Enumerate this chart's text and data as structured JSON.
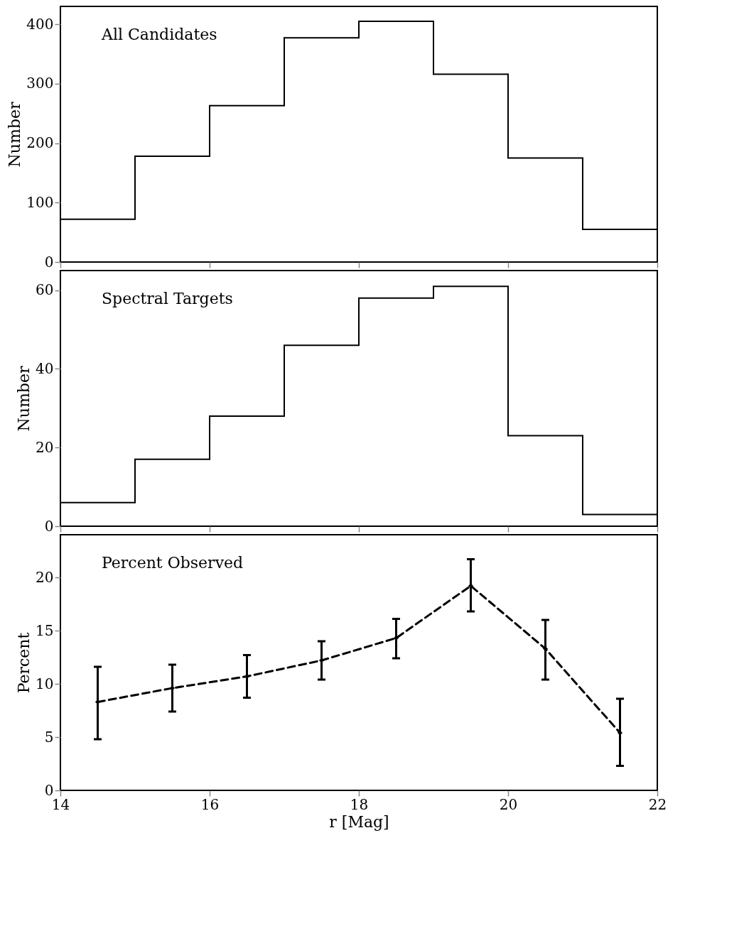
{
  "chart_data": [
    {
      "type": "histogram",
      "bins": [
        14,
        15,
        16,
        17,
        18,
        19,
        20,
        21,
        22
      ],
      "values": [
        72,
        178,
        263,
        377,
        405,
        316,
        175,
        55
      ],
      "color": "#000000",
      "ylabel": "Number",
      "annotations": [
        "All Candidates"
      ],
      "xlim": [
        14,
        22
      ],
      "xticks": [
        14,
        16,
        18,
        20,
        22
      ],
      "ylim": [
        0,
        430
      ],
      "yticks": [
        0,
        100,
        200,
        300,
        400
      ],
      "tick_labels": "y",
      "grid": false
    },
    {
      "type": "histogram",
      "bins": [
        14,
        15,
        16,
        17,
        18,
        19,
        20,
        21,
        22
      ],
      "values": [
        6,
        17,
        28,
        46,
        58,
        61,
        23,
        3
      ],
      "color": "#000000",
      "ylabel": "Number",
      "annotations": [
        "Spectral Targets"
      ],
      "xlim": [
        14,
        22
      ],
      "xticks": [
        14,
        16,
        18,
        20,
        22
      ],
      "ylim": [
        0,
        65
      ],
      "yticks": [
        0,
        20,
        40,
        60
      ],
      "tick_labels": "y",
      "grid": false
    },
    {
      "type": "line",
      "x": [
        14.5,
        15.5,
        16.5,
        17.5,
        18.5,
        19.5,
        20.5,
        21.5
      ],
      "values": [
        8.3,
        9.6,
        10.7,
        12.2,
        14.3,
        19.2,
        13.3,
        5.4
      ],
      "errors": [
        [
          4.8,
          11.6
        ],
        [
          7.4,
          11.8
        ],
        [
          8.7,
          12.7
        ],
        [
          10.4,
          14.0
        ],
        [
          12.4,
          16.1
        ],
        [
          16.8,
          21.7
        ],
        [
          10.4,
          16.0
        ],
        [
          2.3,
          8.6
        ]
      ],
      "color": "#000000",
      "line_style": "dashed",
      "marker": "diamond",
      "xlabel": "r [Mag]",
      "ylabel": "Percent",
      "annotations": [
        "Percent Observed"
      ],
      "xlim": [
        14,
        22
      ],
      "xticks": [
        14,
        16,
        18,
        20,
        22
      ],
      "ylim": [
        0,
        24
      ],
      "yticks": [
        0,
        5,
        10,
        15,
        20
      ],
      "grid": false
    }
  ]
}
